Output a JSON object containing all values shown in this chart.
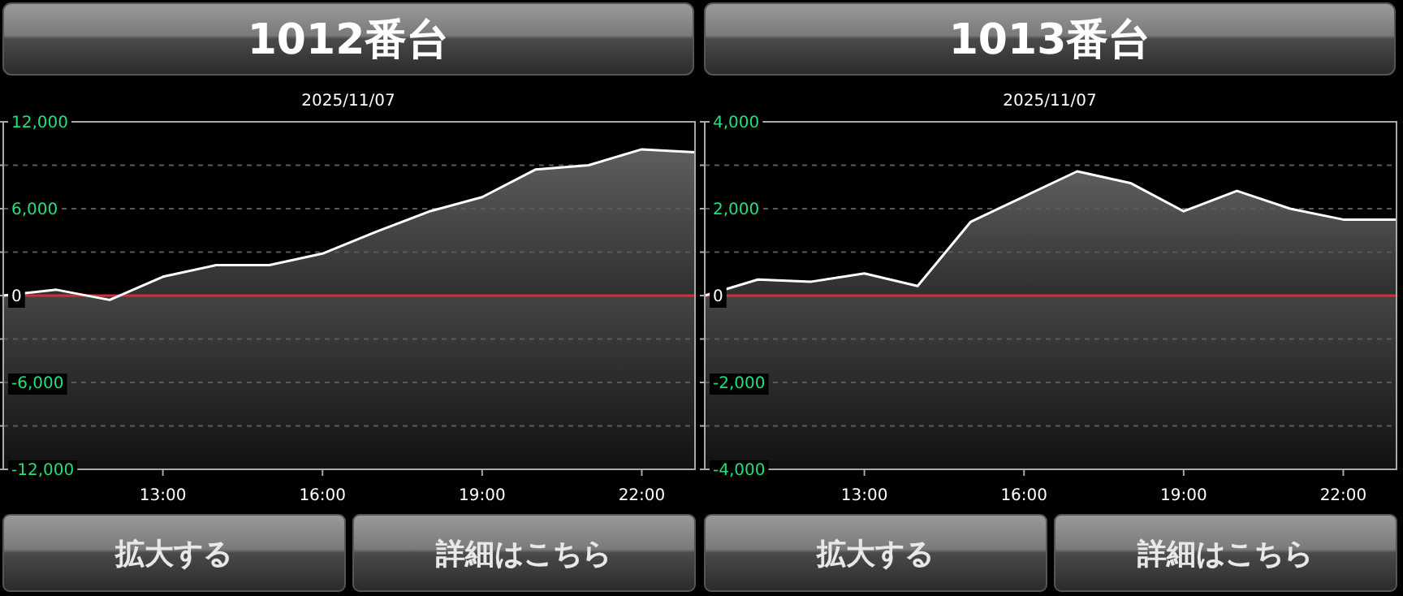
{
  "chart_data": [
    {
      "type": "area",
      "title": "1012番台",
      "subtitle": "2025/11/07",
      "x": [
        10,
        11,
        12,
        13,
        14,
        15,
        16,
        17,
        18,
        19,
        20,
        21,
        22,
        23
      ],
      "series": [
        {
          "color": "#ffffff",
          "values": [
            0,
            400,
            -300,
            1300,
            2100,
            2100,
            2900,
            4400,
            5800,
            6800,
            8700,
            9000,
            10100,
            9900
          ]
        }
      ],
      "xlim": [
        10,
        23
      ],
      "xticks": [
        {
          "value": 13,
          "label": "13:00"
        },
        {
          "value": 16,
          "label": "16:00"
        },
        {
          "value": 19,
          "label": "19:00"
        },
        {
          "value": 22,
          "label": "22:00"
        }
      ],
      "ylim": [
        -12000,
        12000
      ],
      "yticks": [
        {
          "value": -12000,
          "label": "-12,000"
        },
        {
          "value": -9000,
          "label": null
        },
        {
          "value": -6000,
          "label": "-6,000"
        },
        {
          "value": -3000,
          "label": null
        },
        {
          "value": 0,
          "label": "0"
        },
        {
          "value": 3000,
          "label": null
        },
        {
          "value": 6000,
          "label": "6,000"
        },
        {
          "value": 9000,
          "label": null
        },
        {
          "value": 12000,
          "label": "12,000"
        }
      ],
      "grid": "y",
      "ref_lines": [
        {
          "axis": "y",
          "value": 0,
          "color": "#d03030"
        }
      ],
      "annotations": [
        "拡大する",
        "詳細はこちら"
      ]
    },
    {
      "type": "area",
      "title": "1013番台",
      "subtitle": "2025/11/07",
      "x": [
        10,
        11,
        12,
        13,
        14,
        15,
        16,
        17,
        18,
        19,
        20,
        21,
        22,
        23
      ],
      "series": [
        {
          "color": "#ffffff",
          "values": [
            0,
            370,
            320,
            510,
            220,
            1700,
            2280,
            2860,
            2590,
            1940,
            2410,
            2000,
            1750,
            1750
          ]
        }
      ],
      "xlim": [
        10,
        23
      ],
      "xticks": [
        {
          "value": 13,
          "label": "13:00"
        },
        {
          "value": 16,
          "label": "16:00"
        },
        {
          "value": 19,
          "label": "19:00"
        },
        {
          "value": 22,
          "label": "22:00"
        }
      ],
      "ylim": [
        -4000,
        4000
      ],
      "yticks": [
        {
          "value": -4000,
          "label": "-4,000"
        },
        {
          "value": -3000,
          "label": null
        },
        {
          "value": -2000,
          "label": "-2,000"
        },
        {
          "value": -1000,
          "label": null
        },
        {
          "value": 0,
          "label": "0"
        },
        {
          "value": 1000,
          "label": null
        },
        {
          "value": 2000,
          "label": "2,000"
        },
        {
          "value": 3000,
          "label": null
        },
        {
          "value": 4000,
          "label": "4,000"
        }
      ],
      "grid": "y",
      "ref_lines": [
        {
          "axis": "y",
          "value": 0,
          "color": "#d03030"
        }
      ],
      "annotations": [
        "拡大する",
        "詳細はこちら"
      ]
    }
  ]
}
